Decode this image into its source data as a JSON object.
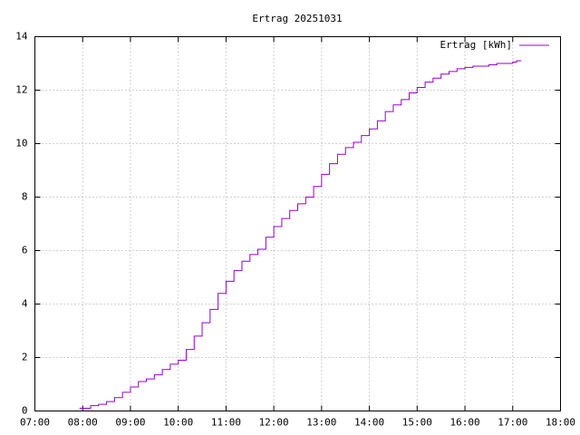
{
  "chart_data": {
    "type": "line",
    "title": "Ertrag 20251031",
    "x": [
      "07:56",
      "08:00",
      "08:10",
      "08:20",
      "08:30",
      "08:40",
      "08:50",
      "09:00",
      "09:10",
      "09:20",
      "09:30",
      "09:40",
      "09:50",
      "10:00",
      "10:10",
      "10:20",
      "10:30",
      "10:40",
      "10:50",
      "11:00",
      "11:10",
      "11:20",
      "11:30",
      "11:40",
      "11:50",
      "12:00",
      "12:10",
      "12:20",
      "12:30",
      "12:40",
      "12:50",
      "13:00",
      "13:10",
      "13:20",
      "13:30",
      "13:40",
      "13:50",
      "14:00",
      "14:10",
      "14:20",
      "14:30",
      "14:40",
      "14:50",
      "15:00",
      "15:10",
      "15:20",
      "15:30",
      "15:40",
      "15:50",
      "16:00",
      "16:10",
      "16:30",
      "16:40",
      "17:00",
      "17:05"
    ],
    "series": [
      {
        "name": "Ertrag [kWh]",
        "color": "#9400d3",
        "values": [
          0.1,
          0.1,
          0.2,
          0.25,
          0.35,
          0.5,
          0.7,
          0.9,
          1.1,
          1.2,
          1.35,
          1.55,
          1.75,
          1.9,
          2.3,
          2.8,
          3.3,
          3.8,
          4.4,
          4.85,
          5.25,
          5.6,
          5.85,
          6.05,
          6.5,
          6.9,
          7.2,
          7.5,
          7.75,
          8.0,
          8.4,
          8.85,
          9.25,
          9.6,
          9.85,
          10.05,
          10.3,
          10.55,
          10.85,
          11.2,
          11.45,
          11.65,
          11.9,
          12.1,
          12.3,
          12.45,
          12.6,
          12.7,
          12.8,
          12.85,
          12.9,
          12.95,
          13.0,
          13.05,
          13.1
        ]
      }
    ],
    "xlim": [
      "07:00",
      "18:00"
    ],
    "xticks": [
      "07:00",
      "08:00",
      "09:00",
      "10:00",
      "11:00",
      "12:00",
      "13:00",
      "14:00",
      "15:00",
      "16:00",
      "17:00",
      "18:00"
    ],
    "ylim": [
      0,
      14
    ],
    "yticks": [
      0,
      2,
      4,
      6,
      8,
      10,
      12,
      14
    ],
    "grid": true,
    "legend": "top-right"
  }
}
